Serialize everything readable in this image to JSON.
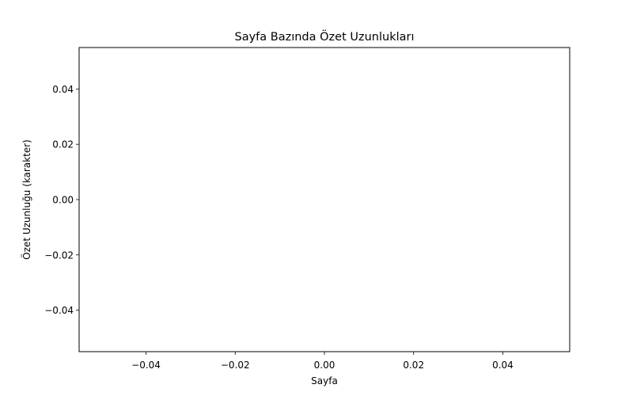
{
  "chart_data": {
    "type": "line",
    "title": "Sayfa Bazında Özet Uzunlukları",
    "xlabel": "Sayfa",
    "ylabel": "Özet Uzunluğu (karakter)",
    "x": [],
    "series": [
      {
        "values": []
      }
    ],
    "xlim": [
      -0.055,
      0.055
    ],
    "ylim": [
      -0.055,
      0.055
    ],
    "xticks": [
      -0.04,
      -0.02,
      0.0,
      0.02,
      0.04
    ],
    "yticks": [
      -0.04,
      -0.02,
      0.0,
      0.02,
      0.04
    ],
    "xtick_labels": [
      "−0.04",
      "−0.02",
      "0.00",
      "0.02",
      "0.04"
    ],
    "ytick_labels": [
      "−0.04",
      "−0.02",
      "0.00",
      "0.02",
      "0.04"
    ],
    "grid": false,
    "legend": "none"
  }
}
